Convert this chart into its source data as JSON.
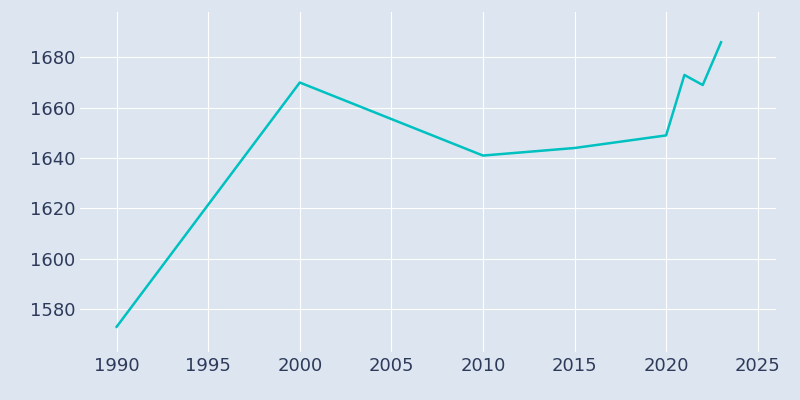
{
  "years": [
    1990,
    2000,
    2010,
    2015,
    2020,
    2021,
    2022,
    2023
  ],
  "population": [
    1573,
    1670,
    1641,
    1644,
    1649,
    1673,
    1669,
    1686
  ],
  "line_color": "#00C0C0",
  "bg_color": "#dde6f0",
  "plot_bg_color": "#dde6f0",
  "grid_color": "#ffffff",
  "tick_color": "#2d3a5a",
  "xlim": [
    1988,
    2026
  ],
  "ylim": [
    1563,
    1698
  ],
  "xticks": [
    1990,
    1995,
    2000,
    2005,
    2010,
    2015,
    2020,
    2025
  ],
  "yticks": [
    1580,
    1600,
    1620,
    1640,
    1660,
    1680
  ],
  "linewidth": 1.8,
  "tick_fontsize": 13
}
